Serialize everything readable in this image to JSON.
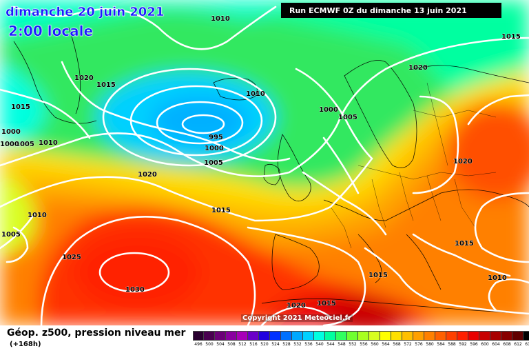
{
  "header": {
    "date": "dimanche 20 juin 2021",
    "time": "2:00 locale",
    "run": "Run ECMWF 0Z du dimanche 13 juin 2021"
  },
  "copyright": "Copyright 2021 Meteociel.fr",
  "footer": {
    "title": "Géop. z500, pression niveau mer",
    "subtitle": "(+168h)"
  },
  "legend": {
    "values": [
      "496",
      "500",
      "504",
      "508",
      "512",
      "516",
      "520",
      "524",
      "528",
      "532",
      "536",
      "540",
      "544",
      "548",
      "552",
      "556",
      "560",
      "564",
      "568",
      "572",
      "576",
      "580",
      "584",
      "588",
      "592",
      "596",
      "600",
      "604",
      "608",
      "612",
      "616"
    ],
    "colors": [
      "#2a0030",
      "#4a0050",
      "#6c0078",
      "#8a00a0",
      "#a800b8",
      "#6a00c8",
      "#2000e0",
      "#0030ff",
      "#0070ff",
      "#00a8ff",
      "#00d0ff",
      "#00ffe0",
      "#00ffa0",
      "#30ff60",
      "#70ff30",
      "#a8ff20",
      "#d8ff20",
      "#ffff00",
      "#ffe000",
      "#ffc000",
      "#ffa000",
      "#ff8000",
      "#ff6000",
      "#ff4000",
      "#ff2000",
      "#e80000",
      "#c80000",
      "#a80000",
      "#880000",
      "#600000",
      "#000000"
    ]
  },
  "isobars": [
    "1010",
    "1015",
    "1015",
    "1020",
    "1020",
    "1015",
    "1010",
    "1000",
    "995",
    "1000",
    "1005",
    "1000",
    "1005",
    "1010",
    "1000",
    "1005",
    "1010",
    "1020",
    "1005",
    "1015",
    "1025",
    "1030",
    "1020",
    "1015",
    "1020",
    "1015",
    "1010",
    "1015"
  ]
}
